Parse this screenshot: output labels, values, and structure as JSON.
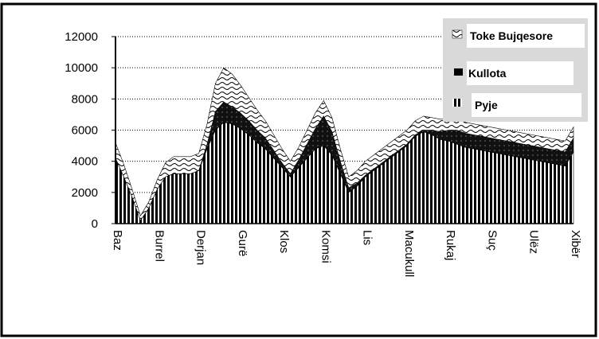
{
  "chart_data": {
    "type": "area",
    "stacked": true,
    "categories": [
      "Baz",
      "Burrel",
      "Derjan",
      "Gurë",
      "Klos",
      "Komsi",
      "Lis",
      "Macukull",
      "Rukaj",
      "Suç",
      "Ulëz",
      "Xibër"
    ],
    "x": [
      0,
      1,
      2,
      3,
      4,
      5,
      6,
      7,
      8,
      9,
      10,
      11,
      12,
      13,
      14,
      15,
      16,
      17,
      18,
      19,
      20,
      21,
      22,
      23,
      24,
      25,
      26,
      27,
      28,
      29,
      30,
      31,
      32,
      33,
      34,
      35,
      36,
      37,
      38,
      39,
      40,
      41,
      42,
      43,
      44,
      45,
      46,
      47,
      48,
      49,
      50,
      51,
      52,
      53,
      54,
      55
    ],
    "series": [
      {
        "name": "Pyje",
        "pattern": "vertical-stripes",
        "values": [
          4200,
          3000,
          1700,
          200,
          1000,
          2200,
          3000,
          3200,
          3200,
          3200,
          3400,
          4800,
          6000,
          6500,
          6400,
          6100,
          5700,
          5200,
          4800,
          4200,
          3600,
          3000,
          3600,
          4200,
          4800,
          5000,
          4400,
          3200,
          2000,
          2400,
          3000,
          3400,
          3800,
          4200,
          4600,
          5000,
          5600,
          5900,
          5700,
          5400,
          5300,
          5100,
          4900,
          4800,
          4700,
          4600,
          4500,
          4400,
          4300,
          4200,
          4100,
          4000,
          3900,
          3800,
          3700,
          4600
        ]
      },
      {
        "name": "Kullota",
        "pattern": "solid-dark",
        "values": [
          0,
          0,
          0,
          0,
          0,
          0,
          0,
          0,
          0,
          0,
          0,
          300,
          1200,
          1300,
          1100,
          1000,
          900,
          800,
          700,
          500,
          300,
          200,
          500,
          900,
          1300,
          1900,
          1500,
          800,
          300,
          200,
          100,
          100,
          100,
          100,
          100,
          100,
          100,
          100,
          300,
          500,
          700,
          900,
          900,
          900,
          900,
          900,
          900,
          900,
          900,
          900,
          900,
          900,
          900,
          900,
          900,
          900
        ]
      },
      {
        "name": "Toke Bujqesore",
        "pattern": "wavy-lines",
        "values": [
          1000,
          800,
          500,
          300,
          400,
          600,
          900,
          1100,
          1100,
          1100,
          1100,
          1300,
          1800,
          2200,
          2100,
          1800,
          1500,
          1300,
          1100,
          1000,
          900,
          800,
          800,
          900,
          1000,
          1000,
          900,
          800,
          700,
          800,
          900,
          900,
          900,
          900,
          900,
          900,
          900,
          900,
          800,
          800,
          700,
          700,
          700,
          700,
          700,
          700,
          700,
          700,
          700,
          700,
          700,
          700,
          700,
          700,
          700,
          700
        ]
      }
    ],
    "ylim": [
      0,
      12000
    ],
    "yticks": [
      "12000",
      "10000",
      "8000",
      "6000",
      "4000",
      "2000",
      "0"
    ],
    "grid": "horizontal dotted",
    "legend": "top-right",
    "xlabel": "",
    "ylabel": "",
    "title": ""
  }
}
